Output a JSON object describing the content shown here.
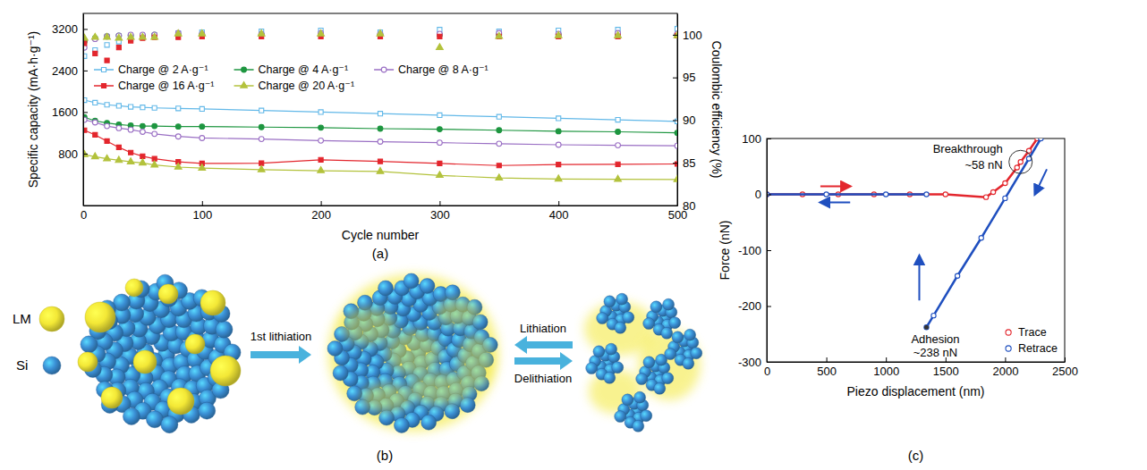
{
  "chart_data": [
    {
      "label": "(a)",
      "type": "line",
      "x_label": "Cycle number",
      "y_label": "Specific capacity (mA·h·g⁻¹)",
      "y2_label": "Coulombic efficiency (%)",
      "x": [
        1,
        10,
        20,
        30,
        40,
        50,
        60,
        80,
        100,
        150,
        200,
        250,
        300,
        350,
        400,
        450,
        500
      ],
      "xlim": [
        0,
        500
      ],
      "xticks": [
        0,
        100,
        200,
        300,
        400,
        500
      ],
      "ylim": [
        -200,
        3500
      ],
      "yticks": [
        800,
        1600,
        2400,
        3200
      ],
      "y2lim": [
        80,
        102.5
      ],
      "y2ticks": [
        80,
        85,
        90,
        95,
        100
      ],
      "legend": "upper left",
      "series": [
        {
          "name": "Charge @ 2 A·g⁻¹",
          "color": "#62b8e8",
          "marker": "open-square",
          "values": [
            1830,
            1780,
            1740,
            1720,
            1700,
            1690,
            1680,
            1670,
            1660,
            1630,
            1600,
            1570,
            1540,
            1510,
            1480,
            1450,
            1420
          ]
        },
        {
          "name": "Charge @ 4 A·g⁻¹",
          "color": "#1e9640",
          "marker": "circle",
          "values": [
            1500,
            1430,
            1390,
            1360,
            1340,
            1330,
            1330,
            1320,
            1320,
            1310,
            1300,
            1280,
            1270,
            1250,
            1230,
            1220,
            1200
          ]
        },
        {
          "name": "Charge @ 8 A·g⁻¹",
          "color": "#9a6fc4",
          "marker": "open-circle",
          "values": [
            1450,
            1400,
            1330,
            1290,
            1260,
            1220,
            1180,
            1130,
            1100,
            1080,
            1050,
            1030,
            1010,
            990,
            970,
            960,
            950
          ]
        },
        {
          "name": "Charge @ 16 A·g⁻¹",
          "color": "#e3262d",
          "marker": "square",
          "values": [
            1250,
            1160,
            1040,
            920,
            820,
            750,
            700,
            640,
            610,
            615,
            680,
            650,
            610,
            570,
            590,
            595,
            600
          ]
        },
        {
          "name": "Charge @ 20 A·g⁻¹",
          "color": "#b3c23c",
          "marker": "triangle",
          "values": [
            780,
            740,
            700,
            670,
            640,
            620,
            580,
            540,
            520,
            490,
            470,
            455,
            380,
            330,
            310,
            305,
            300
          ]
        },
        {
          "type": "scatter",
          "axis": "y2",
          "color": "#62b8e8",
          "marker": "open-square",
          "values": [
            97.5,
            98.2,
            98.8,
            99.2,
            99.5,
            99.7,
            99.9,
            100.2,
            100.3,
            100.4,
            100.5,
            100.3,
            100.6,
            100.4,
            100.5,
            100.6,
            100.7
          ]
        },
        {
          "type": "scatter",
          "axis": "y2",
          "color": "#1e9640",
          "marker": "circle",
          "values": [
            99.2,
            99.6,
            99.8,
            99.9,
            99.9,
            99.9,
            100,
            100,
            100,
            100,
            100,
            100,
            100,
            100,
            100,
            100,
            100
          ]
        },
        {
          "type": "scatter",
          "axis": "y2",
          "color": "#9a6fc4",
          "marker": "open-circle",
          "values": [
            98.5,
            99.5,
            99.8,
            99.9,
            100,
            100,
            100,
            100.2,
            100.1,
            100.1,
            100.2,
            100.1,
            100.1,
            100.2,
            100.1,
            100.2,
            100.1
          ]
        },
        {
          "type": "scatter",
          "axis": "y2",
          "color": "#e3262d",
          "marker": "square",
          "values": [
            99,
            97.8,
            97,
            98.5,
            99.3,
            99.6,
            99.7,
            99.7,
            99.8,
            99.8,
            99.8,
            99.8,
            99.8,
            99.8,
            99.8,
            99.8,
            99.9
          ]
        },
        {
          "type": "scatter",
          "axis": "y2",
          "color": "#b3c23c",
          "marker": "triangle",
          "values": [
            99.6,
            99.7,
            99.7,
            99.6,
            99.7,
            99.7,
            99.7,
            100.1,
            100.1,
            100.1,
            100.1,
            100.1,
            98.5,
            99.8,
            99.9,
            99.9,
            99.9
          ]
        }
      ]
    },
    {
      "label": "(c)",
      "type": "line",
      "x_label": "Piezo displacement (nm)",
      "y_label": "Force (nN)",
      "xlim": [
        0,
        2500
      ],
      "xticks": [
        0,
        500,
        1000,
        1500,
        2000,
        2500
      ],
      "ylim": [
        -300,
        100
      ],
      "yticks": [
        -300,
        -200,
        -100,
        0,
        100
      ],
      "legend": "lower right",
      "series": [
        {
          "name": "Trace",
          "color": "#e3262d",
          "marker": "open-circle",
          "x": [
            0,
            300,
            600,
            900,
            1200,
            1500,
            1840,
            1900,
            2000,
            2100,
            2130,
            2200,
            2270
          ],
          "values": [
            0,
            0,
            0,
            0,
            0,
            0,
            -5,
            4,
            20,
            48,
            58,
            78,
            100
          ]
        },
        {
          "name": "Retrace",
          "color": "#1f4fbf",
          "marker": "open-circle",
          "x": [
            2300,
            2200,
            2000,
            1800,
            1600,
            1400,
            1340,
            1340,
            1340,
            1000,
            500,
            0
          ],
          "values": [
            100,
            64,
            -7,
            -78,
            -146,
            -217,
            -238,
            null,
            0,
            0,
            0,
            0
          ]
        }
      ],
      "annotations": [
        {
          "text": [
            "Breakthrough",
            "~58 nN"
          ],
          "x": 2130,
          "y": 58
        },
        {
          "text": [
            "Adhesion",
            "~238 nN"
          ],
          "x": 1340,
          "y": -238
        }
      ]
    }
  ],
  "diagram": {
    "label": "(b)",
    "legend": [
      {
        "name": "LM",
        "color": "#f3e836"
      },
      {
        "name": "Si",
        "color": "#3a8ed4"
      }
    ],
    "steps": [
      "1st lithiation",
      "Lithiation",
      "Delithiation"
    ]
  }
}
